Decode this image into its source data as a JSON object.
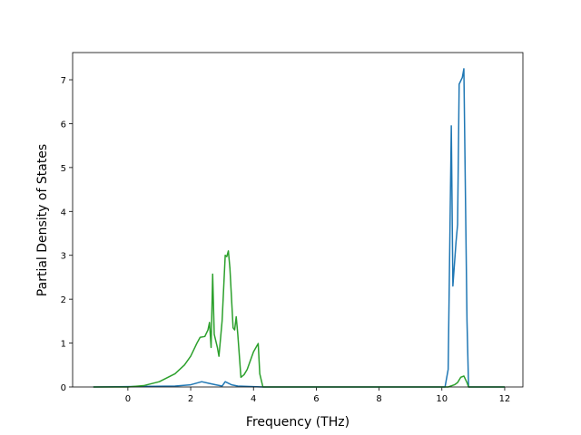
{
  "chart_data": {
    "type": "line",
    "xlabel": "Frequency (THz)",
    "ylabel": "Partial Density of States",
    "xlim": [
      -1.76,
      12.58
    ],
    "ylim": [
      0,
      7.62
    ],
    "xticks": [
      0,
      2,
      4,
      6,
      8,
      10,
      12
    ],
    "yticks": [
      0,
      1,
      2,
      3,
      4,
      5,
      6,
      7
    ],
    "grid": false,
    "series": [
      {
        "color": "#1f77b4",
        "x": [
          -1.1,
          1.5,
          2.0,
          2.35,
          2.6,
          2.8,
          3.0,
          3.1,
          3.3,
          3.5,
          4.3,
          10.1,
          10.2,
          10.3,
          10.35,
          10.45,
          10.5,
          10.55,
          10.65,
          10.7,
          10.8,
          10.85,
          12.0
        ],
        "values": [
          0,
          0.02,
          0.05,
          0.12,
          0.08,
          0.05,
          0.02,
          0.12,
          0.05,
          0.02,
          0,
          0,
          0.4,
          5.95,
          2.3,
          3.3,
          3.7,
          6.9,
          7.05,
          7.25,
          1.5,
          0,
          0
        ]
      },
      {
        "color": "#2ca02c",
        "x": [
          -1.1,
          0.0,
          0.5,
          1.0,
          1.5,
          1.8,
          2.0,
          2.2,
          2.3,
          2.45,
          2.55,
          2.6,
          2.65,
          2.7,
          2.75,
          2.85,
          2.9,
          3.0,
          3.1,
          3.15,
          3.2,
          3.25,
          3.35,
          3.4,
          3.45,
          3.5,
          3.6,
          3.7,
          3.8,
          4.0,
          4.15,
          4.2,
          4.3,
          10.2,
          10.4,
          10.5,
          10.6,
          10.7,
          10.8,
          10.85,
          12.0
        ],
        "values": [
          0,
          0,
          0.03,
          0.12,
          0.3,
          0.5,
          0.7,
          1.0,
          1.13,
          1.15,
          1.3,
          1.47,
          0.9,
          2.57,
          1.2,
          0.9,
          0.7,
          1.5,
          3.0,
          2.97,
          3.1,
          2.7,
          1.35,
          1.3,
          1.6,
          1.2,
          0.22,
          0.28,
          0.4,
          0.8,
          0.99,
          0.3,
          0,
          0,
          0.05,
          0.1,
          0.22,
          0.25,
          0.1,
          0,
          0
        ]
      }
    ]
  }
}
